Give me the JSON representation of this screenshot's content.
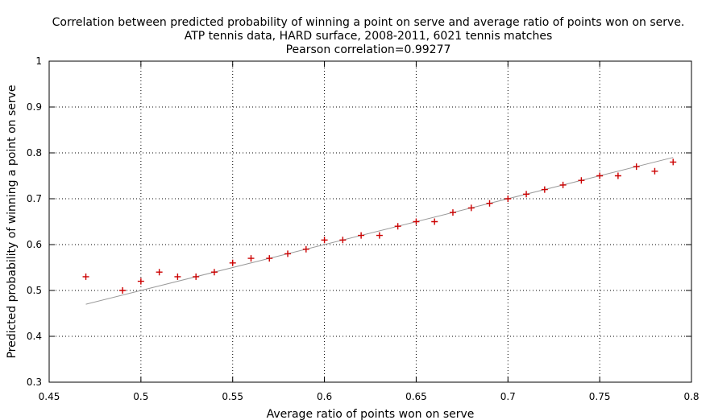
{
  "chart_data": {
    "type": "scatter",
    "title_lines": [
      "Correlation between predicted probability of winning a point on serve and average ratio of points won on serve.",
      "ATP tennis data, HARD surface, 2008-2011, 6021 tennis matches",
      "Pearson correlation=0.99277"
    ],
    "xlabel": "Average ratio of points won on serve",
    "ylabel": "Predicted probability of winning a point on serve",
    "xlim": [
      0.45,
      0.8
    ],
    "ylim": [
      0.3,
      1.0
    ],
    "x_ticks": [
      0.45,
      0.5,
      0.55,
      0.6,
      0.65,
      0.7,
      0.75,
      0.8
    ],
    "x_tick_labels": [
      "0.45",
      "0.5",
      "0.55",
      "0.6",
      "0.65",
      "0.7",
      "0.75",
      "0.8"
    ],
    "y_ticks": [
      0.3,
      0.4,
      0.5,
      0.6,
      0.7,
      0.8,
      0.9,
      1.0
    ],
    "y_tick_labels": [
      "0.3",
      "0.4",
      "0.5",
      "0.6",
      "0.7",
      "0.8",
      "0.9",
      "1"
    ],
    "grid": true,
    "series": [
      {
        "marker": "+",
        "color": "#cc0000",
        "x": [
          0.47,
          0.49,
          0.5,
          0.51,
          0.52,
          0.53,
          0.54,
          0.55,
          0.56,
          0.57,
          0.58,
          0.59,
          0.6,
          0.61,
          0.62,
          0.63,
          0.64,
          0.65,
          0.66,
          0.67,
          0.68,
          0.69,
          0.7,
          0.71,
          0.72,
          0.73,
          0.74,
          0.75,
          0.76,
          0.77,
          0.78,
          0.79
        ],
        "y": [
          0.53,
          0.5,
          0.52,
          0.54,
          0.53,
          0.53,
          0.54,
          0.56,
          0.57,
          0.57,
          0.58,
          0.59,
          0.61,
          0.61,
          0.62,
          0.62,
          0.64,
          0.65,
          0.65,
          0.67,
          0.68,
          0.69,
          0.7,
          0.71,
          0.72,
          0.73,
          0.74,
          0.75,
          0.75,
          0.77,
          0.76,
          0.78
        ]
      },
      {
        "type": "line",
        "color": "#999999",
        "x": [
          0.47,
          0.79
        ],
        "y": [
          0.47,
          0.79
        ]
      }
    ]
  }
}
